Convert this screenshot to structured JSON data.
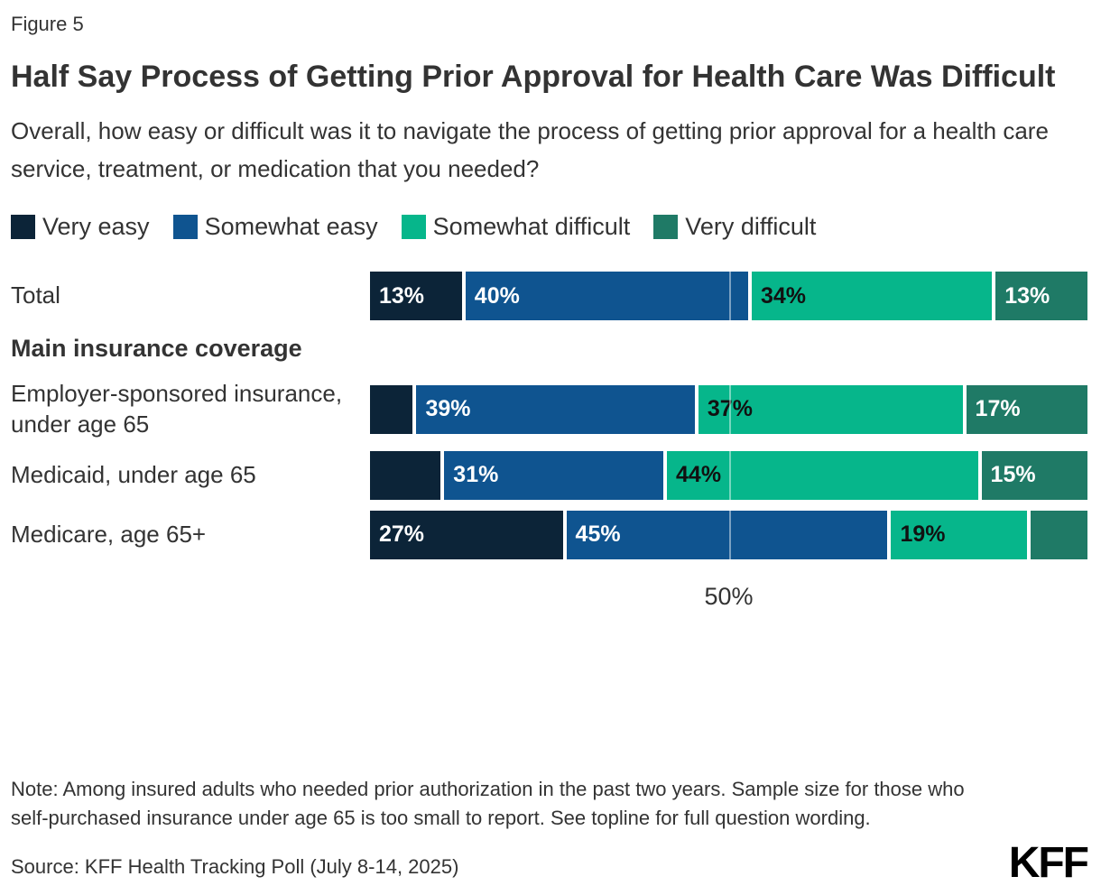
{
  "figure_label": "Figure 5",
  "title": "Half Say Process of Getting Prior Approval for Health Care Was Difficult",
  "subtitle": "Overall, how easy or difficult was it to navigate the process of getting prior approval for a health care service, treatment, or medication that you needed?",
  "note": "Note: Among insured adults who needed prior authorization in the past two years. Sample size for those who self-purchased insurance under age 65 is too small to report. See topline for full question wording.",
  "source": "Source: KFF Health Tracking Poll (July 8-14, 2025)",
  "logo_text": "KFF",
  "chart_data": {
    "type": "bar",
    "orientation": "horizontal",
    "stacked": true,
    "title": "Half Say Process of Getting Prior Approval for Health Care Was Difficult",
    "legend_position": "top",
    "series_names": [
      "Very easy",
      "Somewhat easy",
      "Somewhat difficult",
      "Very difficult"
    ],
    "colors": [
      "#0C2438",
      "#0F5490",
      "#06B68B",
      "#1F7A66"
    ],
    "label_text_colors": [
      "#FFFFFF",
      "#FFFFFF",
      "#111111",
      "#FFFFFF"
    ],
    "x_max": 100,
    "gridline": {
      "value": 50,
      "label": "50%"
    },
    "group_header": {
      "label": "Main insurance coverage",
      "after_row_index": 0
    },
    "rows": [
      {
        "category": "Total",
        "values": [
          13,
          40,
          34,
          13
        ],
        "labels": [
          "13%",
          "40%",
          "34%",
          "13%"
        ]
      },
      {
        "category": "Employer-sponsored insurance, under age 65",
        "values": [
          6,
          39,
          37,
          17
        ],
        "labels": [
          "",
          "39%",
          "37%",
          "17%"
        ]
      },
      {
        "category": "Medicaid, under age 65",
        "values": [
          10,
          31,
          44,
          15
        ],
        "labels": [
          "",
          "31%",
          "44%",
          "15%"
        ]
      },
      {
        "category": "Medicare, age 65+",
        "values": [
          27,
          45,
          19,
          8
        ],
        "labels": [
          "27%",
          "45%",
          "19%",
          ""
        ]
      }
    ]
  }
}
